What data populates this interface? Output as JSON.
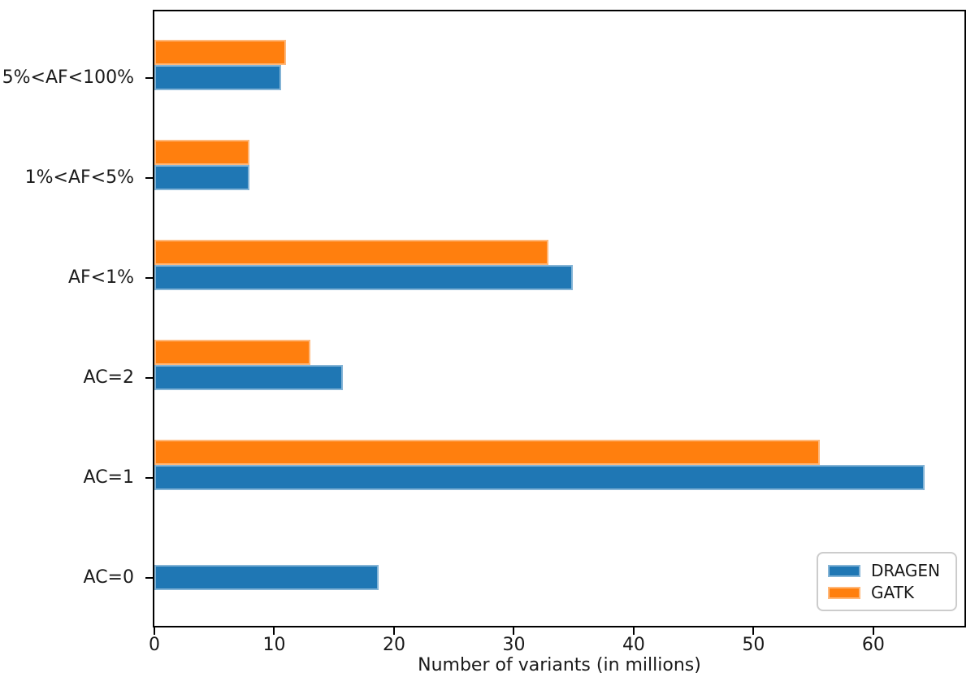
{
  "figure": {
    "background": "#ffffff",
    "text_color": "#1a1a1a",
    "spine_color": "#000000"
  },
  "chart_data": {
    "type": "bar",
    "orientation": "horizontal",
    "title": "",
    "xlabel": "Number of variants (in millions)",
    "ylabel": "",
    "categories": [
      "AC=0",
      "AC=1",
      "AC=2",
      "AF<1%",
      "1%<AF<5%",
      "5%<AF<100%"
    ],
    "categories_order_note": "bottom-to-top on the y axis",
    "series": [
      {
        "name": "DRAGEN",
        "color": "#1f77b4",
        "values": [
          18.7,
          64.3,
          15.7,
          34.9,
          7.9,
          10.6
        ]
      },
      {
        "name": "GATK",
        "color": "#ff7f0e",
        "values": [
          0,
          55.5,
          13.0,
          32.9,
          7.9,
          11.0
        ]
      }
    ],
    "xlim": [
      0,
      67.6
    ],
    "xticks": [
      0,
      10,
      20,
      30,
      40,
      50,
      60
    ],
    "grid": false,
    "legend": {
      "position": "lower right",
      "entries": [
        "DRAGEN",
        "GATK"
      ]
    }
  }
}
